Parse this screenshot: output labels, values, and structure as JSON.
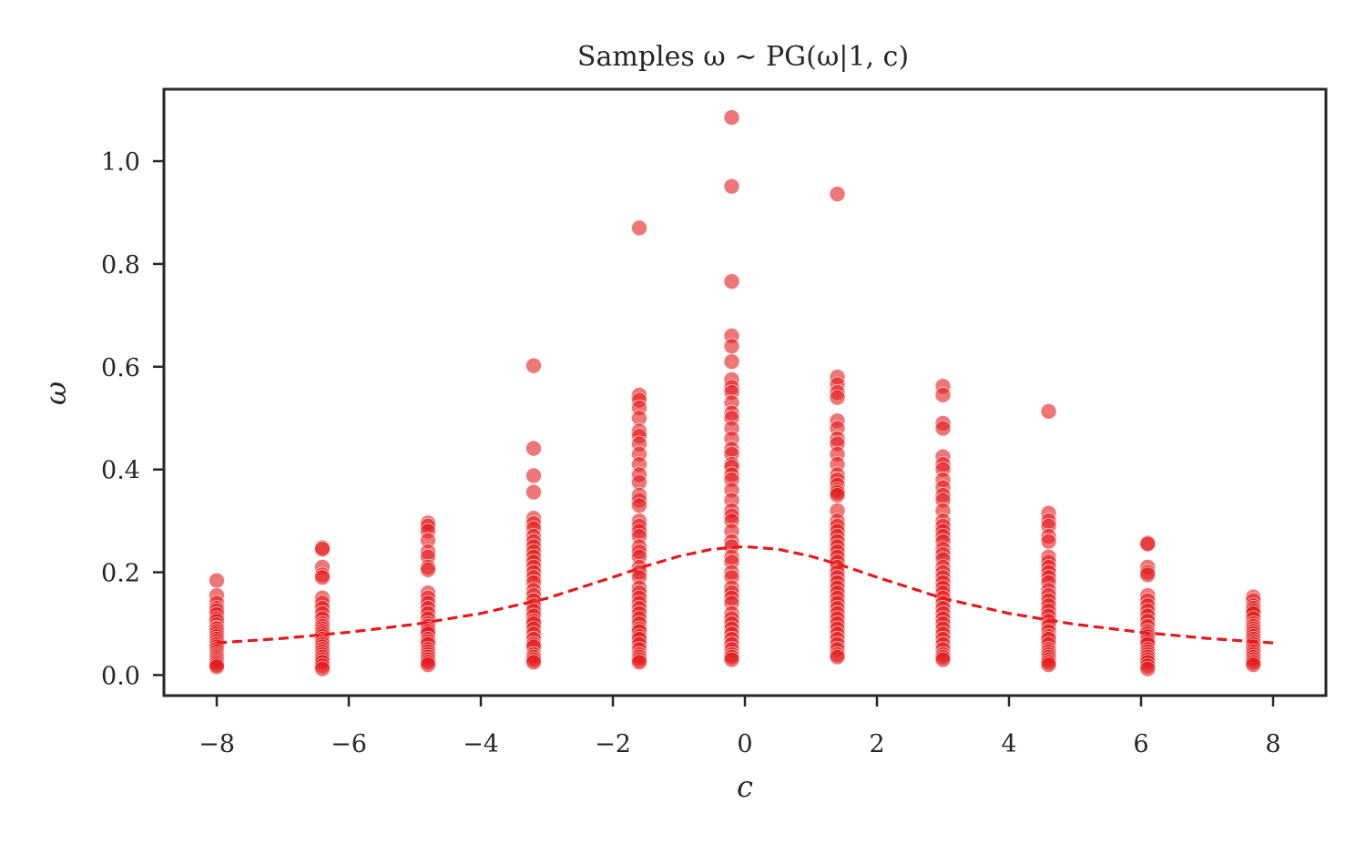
{
  "chart_data": {
    "type": "scatter",
    "title": "Samples ω ∼ PG(ω|1, c)",
    "xlabel": "c",
    "ylabel": "ω",
    "xlim": [
      -8.8,
      8.8
    ],
    "ylim": [
      -0.04,
      1.14
    ],
    "xticks": [
      -8,
      -6,
      -4,
      -2,
      0,
      2,
      4,
      6,
      8
    ],
    "xtick_labels": [
      "−8",
      "−6",
      "−4",
      "−2",
      "0",
      "2",
      "4",
      "6",
      "8"
    ],
    "yticks": [
      0.0,
      0.2,
      0.4,
      0.6,
      0.8,
      1.0
    ],
    "ytick_labels": [
      "0.0",
      "0.2",
      "0.4",
      "0.6",
      "0.8",
      "1.0"
    ],
    "grid": false,
    "legend": "none",
    "point_color": "#e41a1c",
    "line_color": "#e41a1c",
    "series": [
      {
        "kind": "scatter",
        "points": [
          {
            "c": -8.0,
            "w": [
              0.184,
              0.155,
              0.14,
              0.13,
              0.125,
              0.118,
              0.11,
              0.105,
              0.098,
              0.092,
              0.09,
              0.085,
              0.08,
              0.075,
              0.07,
              0.065,
              0.06,
              0.055,
              0.05,
              0.045,
              0.04,
              0.036,
              0.032,
              0.028,
              0.024,
              0.02,
              0.016
            ]
          },
          {
            "c": -6.4,
            "w": [
              0.248,
              0.245,
              0.21,
              0.195,
              0.19,
              0.15,
              0.14,
              0.13,
              0.12,
              0.11,
              0.1,
              0.095,
              0.09,
              0.085,
              0.08,
              0.075,
              0.07,
              0.065,
              0.06,
              0.055,
              0.05,
              0.045,
              0.04,
              0.035,
              0.03,
              0.025,
              0.018,
              0.012
            ]
          },
          {
            "c": -4.8,
            "w": [
              0.296,
              0.29,
              0.28,
              0.262,
              0.24,
              0.23,
              0.21,
              0.205,
              0.16,
              0.15,
              0.14,
              0.13,
              0.12,
              0.11,
              0.1,
              0.095,
              0.09,
              0.085,
              0.08,
              0.07,
              0.065,
              0.06,
              0.05,
              0.045,
              0.04,
              0.035,
              0.03,
              0.025,
              0.02
            ]
          },
          {
            "c": -3.2,
            "w": [
              0.602,
              0.441,
              0.388,
              0.356,
              0.305,
              0.295,
              0.285,
              0.27,
              0.26,
              0.25,
              0.24,
              0.23,
              0.22,
              0.21,
              0.2,
              0.19,
              0.18,
              0.165,
              0.155,
              0.145,
              0.135,
              0.125,
              0.115,
              0.105,
              0.1,
              0.09,
              0.08,
              0.07,
              0.06,
              0.055,
              0.04,
              0.035,
              0.03,
              0.025
            ]
          },
          {
            "c": -1.6,
            "w": [
              0.87,
              0.545,
              0.535,
              0.52,
              0.5,
              0.475,
              0.465,
              0.45,
              0.43,
              0.41,
              0.39,
              0.375,
              0.35,
              0.34,
              0.33,
              0.3,
              0.29,
              0.28,
              0.27,
              0.25,
              0.24,
              0.23,
              0.21,
              0.2,
              0.19,
              0.17,
              0.16,
              0.15,
              0.14,
              0.13,
              0.12,
              0.11,
              0.1,
              0.09,
              0.085,
              0.075,
              0.07,
              0.06,
              0.05,
              0.04,
              0.035,
              0.03,
              0.025
            ]
          },
          {
            "c": -0.2,
            "w": [
              1.085,
              0.951,
              0.766,
              0.66,
              0.64,
              0.61,
              0.575,
              0.56,
              0.55,
              0.53,
              0.51,
              0.5,
              0.48,
              0.46,
              0.44,
              0.43,
              0.41,
              0.405,
              0.39,
              0.38,
              0.36,
              0.34,
              0.32,
              0.31,
              0.3,
              0.28,
              0.26,
              0.25,
              0.23,
              0.22,
              0.2,
              0.19,
              0.17,
              0.16,
              0.15,
              0.14,
              0.12,
              0.11,
              0.1,
              0.09,
              0.08,
              0.07,
              0.06,
              0.05,
              0.04,
              0.035,
              0.03
            ]
          },
          {
            "c": 1.4,
            "w": [
              0.936,
              0.58,
              0.565,
              0.55,
              0.54,
              0.495,
              0.48,
              0.46,
              0.45,
              0.43,
              0.41,
              0.39,
              0.38,
              0.37,
              0.36,
              0.355,
              0.35,
              0.32,
              0.3,
              0.29,
              0.28,
              0.27,
              0.26,
              0.25,
              0.24,
              0.23,
              0.22,
              0.21,
              0.2,
              0.19,
              0.18,
              0.17,
              0.16,
              0.15,
              0.14,
              0.13,
              0.12,
              0.11,
              0.1,
              0.09,
              0.08,
              0.07,
              0.06,
              0.05,
              0.04,
              0.035
            ]
          },
          {
            "c": 3.0,
            "w": [
              0.562,
              0.545,
              0.49,
              0.48,
              0.425,
              0.41,
              0.4,
              0.38,
              0.365,
              0.35,
              0.34,
              0.32,
              0.3,
              0.29,
              0.28,
              0.27,
              0.26,
              0.245,
              0.235,
              0.225,
              0.21,
              0.2,
              0.19,
              0.18,
              0.17,
              0.16,
              0.15,
              0.14,
              0.13,
              0.12,
              0.11,
              0.1,
              0.09,
              0.08,
              0.07,
              0.06,
              0.05,
              0.04,
              0.035,
              0.03
            ]
          },
          {
            "c": 4.6,
            "w": [
              0.513,
              0.315,
              0.3,
              0.29,
              0.27,
              0.26,
              0.23,
              0.22,
              0.21,
              0.2,
              0.19,
              0.18,
              0.165,
              0.155,
              0.145,
              0.135,
              0.125,
              0.115,
              0.105,
              0.095,
              0.085,
              0.075,
              0.07,
              0.06,
              0.05,
              0.045,
              0.04,
              0.035,
              0.03,
              0.025,
              0.02
            ]
          },
          {
            "c": 6.1,
            "w": [
              0.257,
              0.255,
              0.21,
              0.2,
              0.195,
              0.155,
              0.145,
              0.135,
              0.125,
              0.115,
              0.105,
              0.095,
              0.085,
              0.08,
              0.075,
              0.07,
              0.065,
              0.06,
              0.05,
              0.045,
              0.04,
              0.035,
              0.03,
              0.025,
              0.018,
              0.012
            ]
          },
          {
            "c": 7.7,
            "w": [
              0.152,
              0.145,
              0.135,
              0.13,
              0.125,
              0.12,
              0.11,
              0.1,
              0.095,
              0.09,
              0.085,
              0.08,
              0.075,
              0.07,
              0.065,
              0.06,
              0.055,
              0.05,
              0.045,
              0.04,
              0.035,
              0.03,
              0.025,
              0.02
            ]
          }
        ]
      },
      {
        "kind": "line",
        "style": "dashed",
        "x": [
          -8,
          -7,
          -6,
          -5,
          -4,
          -3,
          -2,
          -1.5,
          -1,
          -0.5,
          0,
          0.5,
          1,
          1.5,
          2,
          3,
          4,
          5,
          6,
          7,
          8
        ],
        "y": [
          0.0625,
          0.0714,
          0.0833,
          0.0987,
          0.1199,
          0.1493,
          0.1904,
          0.2121,
          0.2311,
          0.2449,
          0.25,
          0.2449,
          0.2311,
          0.2121,
          0.1904,
          0.1493,
          0.1199,
          0.0987,
          0.0833,
          0.0714,
          0.0625
        ]
      }
    ]
  }
}
